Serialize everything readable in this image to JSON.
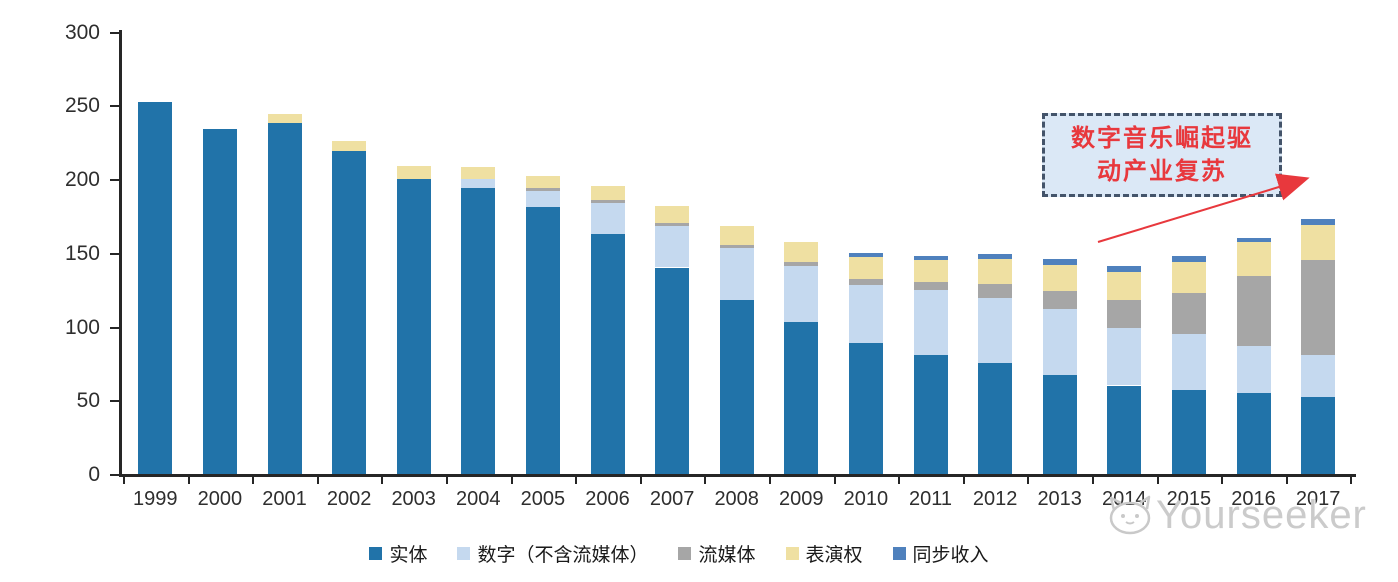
{
  "chart_data": {
    "type": "bar",
    "stacked": true,
    "title": "",
    "xlabel": "",
    "ylabel": "",
    "categories": [
      "1999",
      "2000",
      "2001",
      "2002",
      "2003",
      "2004",
      "2005",
      "2006",
      "2007",
      "2008",
      "2009",
      "2010",
      "2011",
      "2012",
      "2013",
      "2014",
      "2015",
      "2016",
      "2017"
    ],
    "series": [
      {
        "name": "实体",
        "color": "#2173A9",
        "values": [
          252,
          234,
          238,
          219,
          200,
          194,
          181,
          163,
          140,
          118,
          103,
          89,
          81,
          75,
          67,
          60,
          57,
          55,
          52
        ]
      },
      {
        "name": "数字（不含流媒体）",
        "color": "#C5D9EF",
        "values": [
          0,
          0,
          0,
          0,
          0,
          6,
          11,
          21,
          28,
          35,
          38,
          39,
          44,
          44,
          45,
          39,
          38,
          32,
          29
        ]
      },
      {
        "name": "流媒体",
        "color": "#A6A6A6",
        "values": [
          0,
          0,
          0,
          0,
          0,
          0,
          2,
          2,
          2,
          2,
          3,
          4,
          5,
          10,
          12,
          19,
          28,
          47,
          64
        ]
      },
      {
        "name": "表演权",
        "color": "#EFE0A2",
        "values": [
          0,
          0,
          6,
          7,
          9,
          8,
          8,
          9,
          12,
          13,
          13,
          15,
          15,
          17,
          18,
          19,
          21,
          23,
          24
        ]
      },
      {
        "name": "同步收入",
        "color": "#4F81BD",
        "values": [
          0,
          0,
          0,
          0,
          0,
          0,
          0,
          0,
          0,
          0,
          0,
          3,
          3,
          3,
          4,
          4,
          4,
          3,
          4
        ]
      }
    ],
    "ylim": [
      0,
      300
    ],
    "yticks": [
      0,
      50,
      100,
      150,
      200,
      250,
      300
    ],
    "grid": false,
    "legend_position": "bottom"
  },
  "annotation": {
    "line1": "数字音乐崛起驱",
    "line2": "动产业复苏",
    "fill_color": "#DBE8F6",
    "border_color": "#44546A",
    "text_color": "#E8383D",
    "arrow_color": "#E8383D"
  },
  "watermark": {
    "text": "Yourseeker"
  }
}
